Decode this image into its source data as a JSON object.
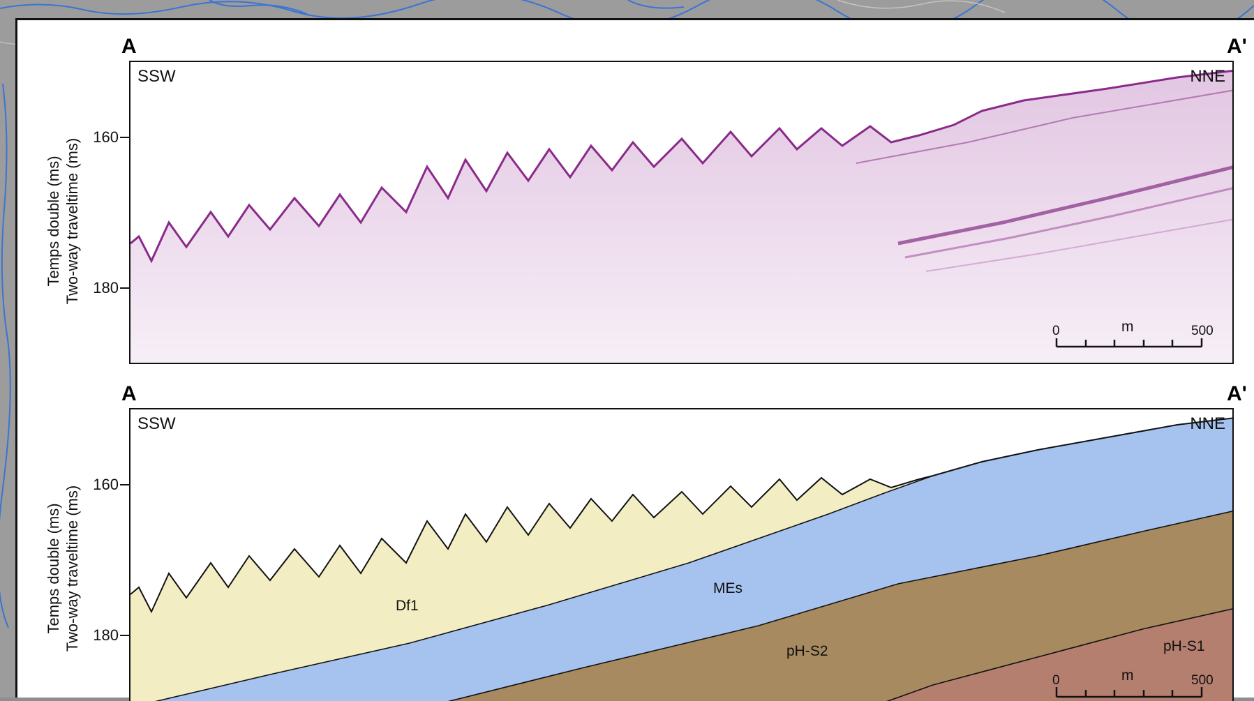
{
  "figure": {
    "panel_top": {
      "start_letter": "A",
      "end_letter": "A'",
      "left_direction": "SSW",
      "right_direction": "NNE",
      "y_axis": {
        "label_line1": "Temps double (ms)",
        "label_line2": "Two-way traveltime (ms)",
        "ticks": [
          "160",
          "180"
        ]
      },
      "scale_bar": {
        "start": "0",
        "unit": "m",
        "end": "500"
      }
    },
    "panel_bottom": {
      "start_letter": "A",
      "end_letter": "A'",
      "left_direction": "SSW",
      "right_direction": "NNE",
      "y_axis": {
        "label_line1": "Temps double (ms)",
        "label_line2": "Two-way traveltime (ms)",
        "ticks": [
          "160",
          "180"
        ]
      },
      "units": [
        "Df1",
        "MEs",
        "pH-S2",
        "pH-S1"
      ],
      "unit_colors": {
        "Df1": "#f3edc4",
        "MEs": "#a6c3ef",
        "pH-S2": "#a88a60",
        "pH-S1": "#b47f6e"
      },
      "scale_bar": {
        "start": "0",
        "unit": "m",
        "end": "500"
      }
    }
  }
}
